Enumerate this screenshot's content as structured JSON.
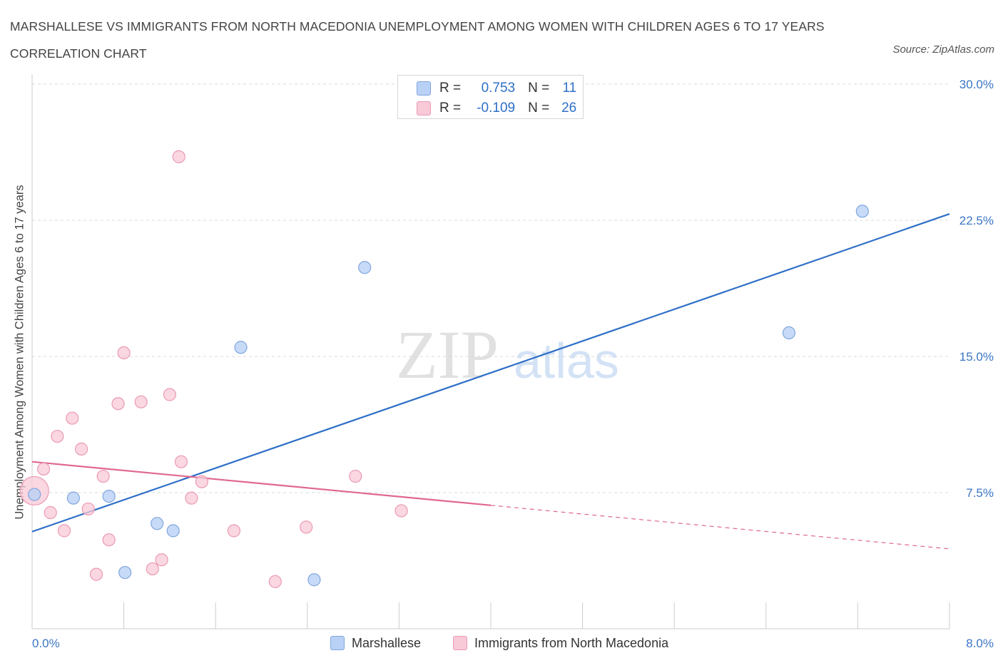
{
  "header": {
    "title": "MARSHALLESE VS IMMIGRANTS FROM NORTH MACEDONIA UNEMPLOYMENT AMONG WOMEN WITH CHILDREN AGES 6 TO 17 YEARS CORRELATION CHART",
    "source": "Source: ZipAtlas.com"
  },
  "legend": {
    "r_label": "R =",
    "n_label": "N =",
    "series": [
      {
        "name": "Marshallese",
        "r": "0.753",
        "n": "11"
      },
      {
        "name": "Immigrants from North Macedonia",
        "r": "-0.109",
        "n": "26"
      }
    ]
  },
  "watermark": {
    "part1": "ZIP",
    "part2": "atlas"
  },
  "colors": {
    "blue_fill": "#b9d1f5",
    "blue_stroke": "#7fa6df",
    "blue_line": "#2e6fc7",
    "pink_fill": "#f8c9d7",
    "pink_stroke": "#eb9ab3",
    "pink_line": "#e0688f",
    "grid": "#d9d9d9",
    "axis_text": "#3b76c4"
  },
  "chart_data": {
    "type": "scatter",
    "title": "MARSHALLESE VS IMMIGRANTS FROM NORTH MACEDONIA UNEMPLOYMENT AMONG WOMEN WITH CHILDREN AGES 6 TO 17 YEARS CORRELATION CHART",
    "xlabel": "",
    "ylabel": "Unemployment Among Women with Children Ages 6 to 17 years",
    "xlim": [
      0,
      8.0
    ],
    "ylim": [
      0,
      30.0
    ],
    "x_tick_labels": [
      "0.0%",
      "8.0%"
    ],
    "y_ticks": [
      7.5,
      15.0,
      22.5,
      30.0
    ],
    "y_tick_labels": [
      "7.5%",
      "15.0%",
      "22.5%",
      "30.0%"
    ],
    "grid": true,
    "series": [
      {
        "name": "Marshallese",
        "color": "#b9d1f5",
        "points": [
          [
            0.02,
            7.4
          ],
          [
            0.36,
            7.2
          ],
          [
            0.67,
            7.3
          ],
          [
            0.81,
            3.1
          ],
          [
            1.09,
            5.8
          ],
          [
            1.23,
            5.4
          ],
          [
            1.82,
            15.5
          ],
          [
            2.46,
            2.7
          ],
          [
            2.9,
            19.9
          ],
          [
            6.6,
            16.3
          ],
          [
            7.24,
            23.0
          ]
        ],
        "trend": {
          "x": [
            0.0,
            8.0
          ],
          "y": [
            5.35,
            22.85
          ],
          "style": "solid"
        }
      },
      {
        "name": "Immigrants from North Macedonia",
        "color": "#f8c9d7",
        "points": [
          [
            0.02,
            7.6
          ],
          [
            0.1,
            8.8
          ],
          [
            0.16,
            6.4
          ],
          [
            0.22,
            10.6
          ],
          [
            0.28,
            5.4
          ],
          [
            0.35,
            11.6
          ],
          [
            0.43,
            9.9
          ],
          [
            0.49,
            6.6
          ],
          [
            0.56,
            3.0
          ],
          [
            0.62,
            8.4
          ],
          [
            0.67,
            4.9
          ],
          [
            0.75,
            12.4
          ],
          [
            0.8,
            15.2
          ],
          [
            0.95,
            12.5
          ],
          [
            1.05,
            3.3
          ],
          [
            1.13,
            3.8
          ],
          [
            1.2,
            12.9
          ],
          [
            1.3,
            9.2
          ],
          [
            1.39,
            7.2
          ],
          [
            1.48,
            8.1
          ],
          [
            1.76,
            5.4
          ],
          [
            2.12,
            2.6
          ],
          [
            2.39,
            5.6
          ],
          [
            2.82,
            8.4
          ],
          [
            3.22,
            6.5
          ],
          [
            1.28,
            26.0
          ]
        ],
        "trend": {
          "x": [
            0.0,
            4.0,
            8.0
          ],
          "y": [
            9.2,
            6.8,
            4.4
          ],
          "style": "solid then dashed"
        }
      }
    ]
  }
}
